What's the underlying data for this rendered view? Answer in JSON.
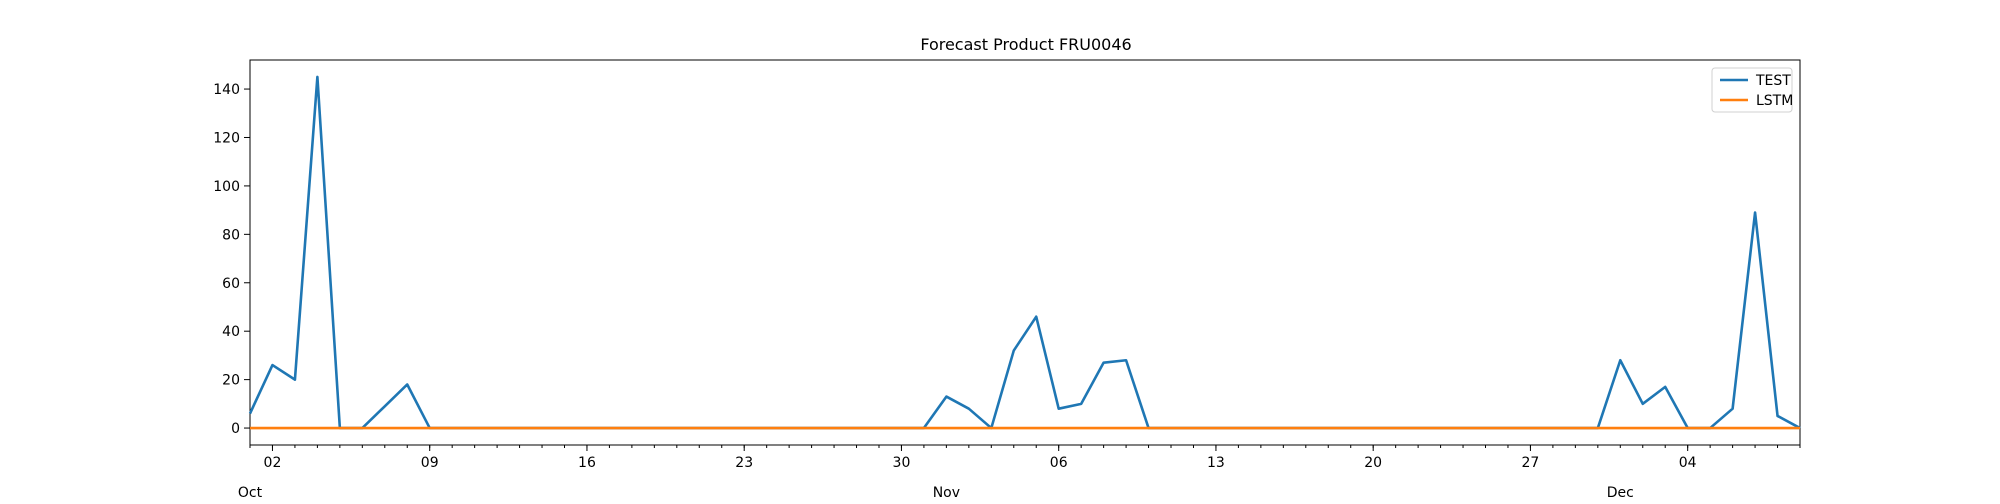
{
  "chart_data": {
    "type": "line",
    "title": "Forecast Product FRU0046",
    "xlabel": "",
    "ylabel": "",
    "x_start": "2023-10-01",
    "x_end": "2023-12-08",
    "ylim": [
      -7,
      152
    ],
    "y_ticks": [
      0,
      20,
      40,
      60,
      80,
      100,
      120,
      140
    ],
    "x_major_ticks": [
      {
        "date": "2023-10-02",
        "label": "02"
      },
      {
        "date": "2023-10-09",
        "label": "09"
      },
      {
        "date": "2023-10-16",
        "label": "16"
      },
      {
        "date": "2023-10-23",
        "label": "23"
      },
      {
        "date": "2023-10-30",
        "label": "30"
      },
      {
        "date": "2023-11-06",
        "label": "06"
      },
      {
        "date": "2023-11-13",
        "label": "13"
      },
      {
        "date": "2023-11-20",
        "label": "20"
      },
      {
        "date": "2023-11-27",
        "label": "27"
      },
      {
        "date": "2023-12-04",
        "label": "04"
      }
    ],
    "month_labels": [
      {
        "date": "2023-10-01",
        "label": "Oct"
      },
      {
        "date": "2023-11-01",
        "label": "Nov"
      },
      {
        "date": "2023-12-01",
        "label": "Dec"
      }
    ],
    "legend_position": "top-right",
    "grid": false,
    "series": [
      {
        "name": "TEST",
        "color": "#1f77b4",
        "points": [
          [
            "2023-10-01",
            6
          ],
          [
            "2023-10-02",
            26
          ],
          [
            "2023-10-03",
            20
          ],
          [
            "2023-10-04",
            145
          ],
          [
            "2023-10-05",
            0
          ],
          [
            "2023-10-06",
            0
          ],
          [
            "2023-10-07",
            9
          ],
          [
            "2023-10-08",
            18
          ],
          [
            "2023-10-09",
            0
          ],
          [
            "2023-10-10",
            0
          ],
          [
            "2023-10-11",
            0
          ],
          [
            "2023-10-12",
            0
          ],
          [
            "2023-10-13",
            0
          ],
          [
            "2023-10-14",
            0
          ],
          [
            "2023-10-15",
            0
          ],
          [
            "2023-10-16",
            0
          ],
          [
            "2023-10-17",
            0
          ],
          [
            "2023-10-18",
            0
          ],
          [
            "2023-10-19",
            0
          ],
          [
            "2023-10-20",
            0
          ],
          [
            "2023-10-21",
            0
          ],
          [
            "2023-10-22",
            0
          ],
          [
            "2023-10-23",
            0
          ],
          [
            "2023-10-24",
            0
          ],
          [
            "2023-10-25",
            0
          ],
          [
            "2023-10-26",
            0
          ],
          [
            "2023-10-27",
            0
          ],
          [
            "2023-10-28",
            0
          ],
          [
            "2023-10-29",
            0
          ],
          [
            "2023-10-30",
            0
          ],
          [
            "2023-10-31",
            0
          ],
          [
            "2023-11-01",
            13
          ],
          [
            "2023-11-02",
            8
          ],
          [
            "2023-11-03",
            0
          ],
          [
            "2023-11-04",
            32
          ],
          [
            "2023-11-05",
            46
          ],
          [
            "2023-11-06",
            8
          ],
          [
            "2023-11-07",
            10
          ],
          [
            "2023-11-08",
            27
          ],
          [
            "2023-11-09",
            28
          ],
          [
            "2023-11-10",
            0
          ],
          [
            "2023-11-11",
            0
          ],
          [
            "2023-11-12",
            0
          ],
          [
            "2023-11-13",
            0
          ],
          [
            "2023-11-14",
            0
          ],
          [
            "2023-11-15",
            0
          ],
          [
            "2023-11-16",
            0
          ],
          [
            "2023-11-17",
            0
          ],
          [
            "2023-11-18",
            0
          ],
          [
            "2023-11-19",
            0
          ],
          [
            "2023-11-20",
            0
          ],
          [
            "2023-11-21",
            0
          ],
          [
            "2023-11-22",
            0
          ],
          [
            "2023-11-23",
            0
          ],
          [
            "2023-11-24",
            0
          ],
          [
            "2023-11-25",
            0
          ],
          [
            "2023-11-26",
            0
          ],
          [
            "2023-11-27",
            0
          ],
          [
            "2023-11-28",
            0
          ],
          [
            "2023-11-29",
            0
          ],
          [
            "2023-11-30",
            0
          ],
          [
            "2023-12-01",
            28
          ],
          [
            "2023-12-02",
            10
          ],
          [
            "2023-12-03",
            17
          ],
          [
            "2023-12-04",
            0
          ],
          [
            "2023-12-05",
            0
          ],
          [
            "2023-12-06",
            8
          ],
          [
            "2023-12-07",
            89
          ],
          [
            "2023-12-08",
            5
          ],
          [
            "2023-12-09",
            0
          ]
        ]
      },
      {
        "name": "LSTM",
        "color": "#ff7f0e",
        "points": [
          [
            "2023-10-01",
            0
          ],
          [
            "2023-12-09",
            0
          ]
        ]
      }
    ]
  }
}
